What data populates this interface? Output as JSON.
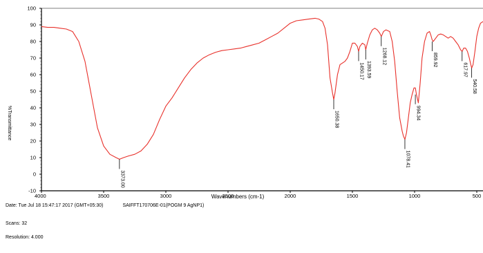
{
  "chart_data": {
    "type": "line",
    "title": "",
    "xlabel": "Wavenumbers (cm-1)",
    "ylabel": "%Transmittance",
    "xlim": [
      4000,
      450
    ],
    "ylim": [
      -10,
      100
    ],
    "x_reversed": true,
    "grid": false,
    "x_ticks": [
      4000,
      3500,
      3000,
      2500,
      2000,
      1500,
      1000,
      500
    ],
    "y_ticks": [
      -10,
      0,
      10,
      20,
      30,
      40,
      50,
      60,
      70,
      80,
      90,
      100
    ],
    "line_color": "#e8302a",
    "series": [
      {
        "name": "",
        "x": [
          4000,
          3950,
          3900,
          3850,
          3800,
          3750,
          3700,
          3650,
          3600,
          3550,
          3500,
          3450,
          3400,
          3373,
          3340,
          3300,
          3250,
          3200,
          3150,
          3100,
          3050,
          3000,
          2950,
          2900,
          2850,
          2800,
          2750,
          2700,
          2650,
          2600,
          2550,
          2500,
          2450,
          2400,
          2350,
          2300,
          2250,
          2200,
          2150,
          2100,
          2050,
          2000,
          1950,
          1900,
          1850,
          1800,
          1770,
          1740,
          1720,
          1700,
          1680,
          1660,
          1650,
          1640,
          1620,
          1600,
          1580,
          1560,
          1540,
          1520,
          1500,
          1480,
          1460,
          1450,
          1440,
          1420,
          1400,
          1393,
          1380,
          1360,
          1340,
          1320,
          1300,
          1280,
          1268,
          1250,
          1230,
          1200,
          1180,
          1160,
          1140,
          1120,
          1100,
          1090,
          1078,
          1065,
          1050,
          1035,
          1020,
          1005,
          994,
          985,
          970,
          955,
          940,
          920,
          900,
          880,
          870,
          859,
          850,
          830,
          810,
          790,
          770,
          750,
          730,
          710,
          690,
          670,
          650,
          630,
          618,
          605,
          590,
          575,
          560,
          548,
          541,
          530,
          515,
          500,
          485,
          470,
          450
        ],
        "y": [
          89,
          88.5,
          88.5,
          88,
          87.5,
          86,
          80,
          68,
          48,
          28,
          17,
          12,
          10,
          9,
          10,
          11,
          12,
          14,
          18,
          24,
          33,
          41,
          46,
          52,
          58,
          63,
          67,
          70,
          72,
          73.5,
          74.5,
          75,
          75.5,
          76,
          77,
          78,
          79,
          81,
          83,
          85,
          88,
          91,
          92.5,
          93,
          93.5,
          94,
          93.5,
          92,
          88,
          78,
          58,
          49,
          45,
          49,
          60,
          66,
          67,
          68,
          70,
          74,
          79,
          79,
          77,
          74,
          77,
          79,
          78,
          75,
          79,
          84,
          87,
          88,
          87,
          85,
          83,
          86,
          87,
          86,
          80,
          68,
          50,
          34,
          26,
          23,
          21,
          25,
          34,
          43,
          48,
          52,
          52,
          48,
          43,
          55,
          70,
          80,
          85,
          86,
          84,
          81,
          80,
          82,
          84,
          84.5,
          84,
          83,
          82,
          83,
          82,
          80,
          78,
          75,
          74,
          76,
          76,
          74,
          70,
          66,
          64,
          66,
          74,
          83,
          88,
          91,
          92
        ]
      }
    ],
    "annotations": [
      {
        "x": 3373,
        "y": 9,
        "label": "3373.00"
      },
      {
        "x": 1650,
        "y": 45,
        "label": "1650.38"
      },
      {
        "x": 1450,
        "y": 74,
        "label": "1450.17"
      },
      {
        "x": 1393,
        "y": 75,
        "label": "1393.59"
      },
      {
        "x": 1268,
        "y": 83,
        "label": "1268.12"
      },
      {
        "x": 1078,
        "y": 21,
        "label": "1078.41"
      },
      {
        "x": 994,
        "y": 48,
        "label": "994.34"
      },
      {
        "x": 859,
        "y": 80,
        "label": "859.92"
      },
      {
        "x": 618,
        "y": 74,
        "label": "617.97"
      },
      {
        "x": 541,
        "y": 64,
        "label": "540.58"
      }
    ]
  },
  "footer": {
    "date_line": "Date: Tue Jul 18 15:47:17 2017 (GMT+05:30)",
    "sample": "SAIFFT170706E-01(POGM 9 AgNP1)",
    "scans": "Scans: 32",
    "resolution": "Resolution: 4.000"
  }
}
